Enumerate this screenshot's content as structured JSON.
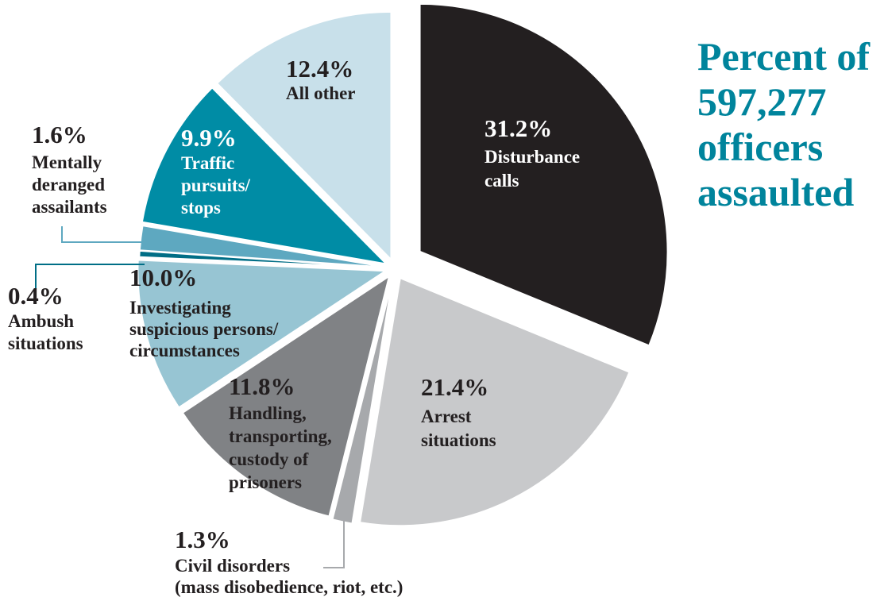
{
  "chart_data": {
    "type": "pie",
    "title": "Percent of\n597,277\nofficers\nassaulted",
    "categories": [
      "Disturbance\ncalls",
      "Arrest\nsituations",
      "Civil disorders\n(mass disobedience, riot, etc.)",
      "Handling,\ntransporting,\ncustody of\nprisoners",
      "Investigating\nsuspicious persons/\ncircumstances",
      "Ambush\nsituations",
      "Mentally\nderanged\nassailants",
      "Traffic\npursuits/\nstops",
      "All other"
    ],
    "values": [
      31.2,
      21.4,
      1.3,
      11.8,
      10.0,
      0.4,
      1.6,
      9.9,
      12.4
    ],
    "value_labels": [
      "31.2%",
      "21.4%",
      "1.3%",
      "11.8%",
      "10.0%",
      "0.4%",
      "1.6%",
      "9.9%",
      "12.4%"
    ],
    "colors": [
      "#231f20",
      "#c8c9cb",
      "#a7a9ac",
      "#808285",
      "#97c5d3",
      "#006e86",
      "#5ea8c0",
      "#008ca5",
      "#c8e0ea"
    ],
    "title_color": "#00849c"
  }
}
